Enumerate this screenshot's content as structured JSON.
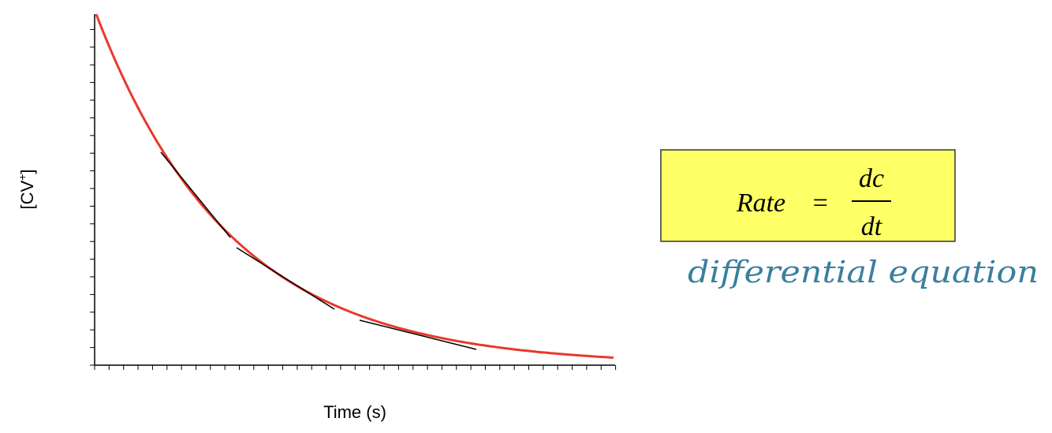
{
  "axes": {
    "y_label": {
      "main": "[CV",
      "sup": "+",
      "close": "]"
    },
    "x_label": "Time (s)"
  },
  "equation": {
    "lhs": "Rate",
    "equals": "=",
    "numerator": "dc",
    "denominator": "dt"
  },
  "annotation": "differential equation"
}
